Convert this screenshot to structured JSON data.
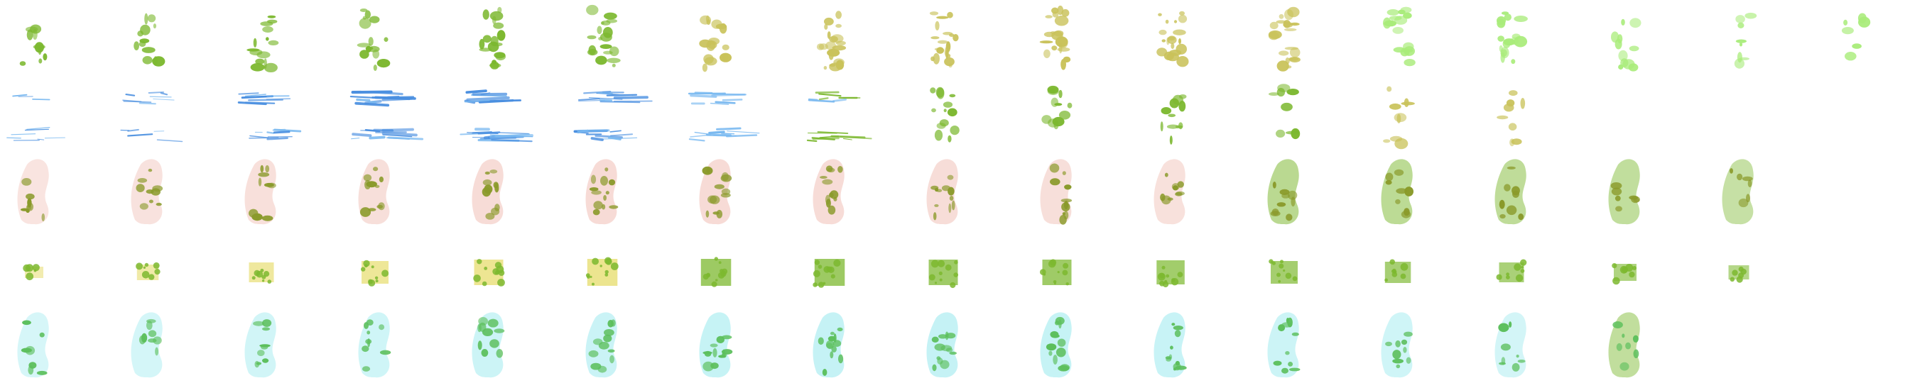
{
  "palette": {
    "background": "#ffffff",
    "green": "#7cb82f",
    "olive": "#c9c25a",
    "olive_dark": "#8a9a2a",
    "light_green": "#a9ec7a",
    "blue": "#4a8fe0",
    "blue_light": "#78b8f0",
    "pink": "#f2c8c0",
    "yellow": "#e6dc6a",
    "cyan": "#a8ecf0",
    "mid_green": "#5cbf5c"
  },
  "sprite_rows": [
    {
      "id": "row-1",
      "theme": "green-to-olive-to-fading",
      "frames": [
        {
          "shape": "blob",
          "color": "green",
          "density": 0.35
        },
        {
          "shape": "blob",
          "color": "green",
          "density": 0.45
        },
        {
          "shape": "blob",
          "color": "green",
          "density": 0.55
        },
        {
          "shape": "blob",
          "color": "green",
          "density": 0.6
        },
        {
          "shape": "blob",
          "color": "green",
          "density": 0.7
        },
        {
          "shape": "blob",
          "color": "green",
          "density": 0.75
        },
        {
          "shape": "blob",
          "color": "olive",
          "density": 0.8
        },
        {
          "shape": "blob",
          "color": "olive",
          "density": 0.85
        },
        {
          "shape": "blob",
          "color": "olive",
          "density": 0.85
        },
        {
          "shape": "blob",
          "color": "olive",
          "density": 0.85
        },
        {
          "shape": "blob",
          "color": "olive",
          "density": 0.85
        },
        {
          "shape": "blob",
          "color": "olive",
          "density": 0.85
        },
        {
          "shape": "blob",
          "color": "light_green",
          "density": 0.7
        },
        {
          "shape": "blob",
          "color": "light_green",
          "density": 0.65
        },
        {
          "shape": "blob",
          "color": "light_green",
          "density": 0.4
        },
        {
          "shape": "blob",
          "color": "light_green",
          "density": 0.2
        },
        {
          "shape": "blob",
          "color": "light_green",
          "density": 0.12
        }
      ]
    },
    {
      "id": "row-2",
      "theme": "blue-streaks-to-green",
      "frames": [
        {
          "shape": "streak",
          "color": "blue",
          "density": 0.2
        },
        {
          "shape": "streak",
          "color": "blue",
          "density": 0.3
        },
        {
          "shape": "streak",
          "color": "blue",
          "density": 0.5
        },
        {
          "shape": "streak",
          "color": "blue",
          "density": 0.8
        },
        {
          "shape": "streak",
          "color": "blue",
          "density": 0.85
        },
        {
          "shape": "streak",
          "color": "blue",
          "density": 0.75
        },
        {
          "shape": "streak",
          "color": "blue_light",
          "density": 0.6
        },
        {
          "shape": "streak",
          "color": "green",
          "density": 0.5
        },
        {
          "shape": "blob",
          "color": "green",
          "density": 0.5
        },
        {
          "shape": "blob",
          "color": "green",
          "density": 0.45
        },
        {
          "shape": "blob",
          "color": "green",
          "density": 0.4
        },
        {
          "shape": "blob",
          "color": "green",
          "density": 0.3
        },
        {
          "shape": "blob",
          "color": "olive",
          "density": 0.25
        },
        {
          "shape": "blob",
          "color": "olive",
          "density": 0.2
        },
        {
          "shape": "blob",
          "color": "olive",
          "density": 0.0
        },
        {
          "shape": "blob",
          "color": "olive",
          "density": 0.0
        },
        {
          "shape": "blob",
          "color": "olive",
          "density": 0.0
        }
      ]
    },
    {
      "id": "row-3",
      "theme": "pink-silhouette-with-olive",
      "frames": [
        {
          "shape": "silhouette",
          "color": "pink",
          "density": 0.35
        },
        {
          "shape": "silhouette",
          "color": "pink",
          "density": 0.45
        },
        {
          "shape": "silhouette",
          "color": "pink",
          "density": 0.55
        },
        {
          "shape": "silhouette",
          "color": "pink",
          "density": 0.6
        },
        {
          "shape": "silhouette",
          "color": "pink",
          "density": 0.7
        },
        {
          "shape": "silhouette",
          "color": "pink",
          "density": 0.75
        },
        {
          "shape": "silhouette",
          "color": "pink",
          "density": 0.75
        },
        {
          "shape": "silhouette",
          "color": "pink",
          "density": 0.7
        },
        {
          "shape": "silhouette",
          "color": "pink",
          "density": 0.65
        },
        {
          "shape": "silhouette",
          "color": "pink",
          "density": 0.6
        },
        {
          "shape": "silhouette",
          "color": "pink",
          "density": 0.5
        },
        {
          "shape": "silhouette",
          "color": "green",
          "density": 0.45
        },
        {
          "shape": "silhouette",
          "color": "green",
          "density": 0.4
        },
        {
          "shape": "silhouette",
          "color": "green",
          "density": 0.35
        },
        {
          "shape": "silhouette",
          "color": "green",
          "density": 0.3
        },
        {
          "shape": "silhouette",
          "color": "green",
          "density": 0.2
        },
        {
          "shape": "silhouette",
          "color": "green",
          "density": 0.0
        }
      ]
    },
    {
      "id": "row-4",
      "theme": "yellow-to-green-sprite",
      "frames": [
        {
          "shape": "slab",
          "color": "yellow",
          "density": 0.2
        },
        {
          "shape": "slab",
          "color": "yellow",
          "density": 0.35
        },
        {
          "shape": "slab",
          "color": "yellow",
          "density": 0.5
        },
        {
          "shape": "slab",
          "color": "yellow",
          "density": 0.6
        },
        {
          "shape": "slab",
          "color": "yellow",
          "density": 0.7
        },
        {
          "shape": "slab",
          "color": "yellow",
          "density": 0.75
        },
        {
          "shape": "slab",
          "color": "green",
          "density": 0.75
        },
        {
          "shape": "slab",
          "color": "green",
          "density": 0.75
        },
        {
          "shape": "slab",
          "color": "green",
          "density": 0.7
        },
        {
          "shape": "slab",
          "color": "green",
          "density": 0.7
        },
        {
          "shape": "slab",
          "color": "green",
          "density": 0.65
        },
        {
          "shape": "slab",
          "color": "green",
          "density": 0.6
        },
        {
          "shape": "slab",
          "color": "green",
          "density": 0.55
        },
        {
          "shape": "slab",
          "color": "green",
          "density": 0.5
        },
        {
          "shape": "slab",
          "color": "green",
          "density": 0.4
        },
        {
          "shape": "slab",
          "color": "green",
          "density": 0.3
        },
        {
          "shape": "slab",
          "color": "green",
          "density": 0.0
        }
      ]
    },
    {
      "id": "row-5",
      "theme": "cyan-silhouette-with-green",
      "frames": [
        {
          "shape": "silhouette",
          "color": "cyan",
          "density": 0.3
        },
        {
          "shape": "silhouette",
          "color": "cyan",
          "density": 0.35
        },
        {
          "shape": "silhouette",
          "color": "cyan",
          "density": 0.45
        },
        {
          "shape": "silhouette",
          "color": "cyan",
          "density": 0.5
        },
        {
          "shape": "silhouette",
          "color": "cyan",
          "density": 0.6
        },
        {
          "shape": "silhouette",
          "color": "cyan",
          "density": 0.65
        },
        {
          "shape": "silhouette",
          "color": "cyan",
          "density": 0.75
        },
        {
          "shape": "silhouette",
          "color": "cyan",
          "density": 0.8
        },
        {
          "shape": "silhouette",
          "color": "cyan",
          "density": 0.8
        },
        {
          "shape": "silhouette",
          "color": "cyan",
          "density": 0.75
        },
        {
          "shape": "silhouette",
          "color": "cyan",
          "density": 0.7
        },
        {
          "shape": "silhouette",
          "color": "cyan",
          "density": 0.6
        },
        {
          "shape": "silhouette",
          "color": "cyan",
          "density": 0.5
        },
        {
          "shape": "silhouette",
          "color": "cyan",
          "density": 0.4
        },
        {
          "shape": "silhouette",
          "color": "green",
          "density": 0.3
        },
        {
          "shape": "silhouette",
          "color": "green",
          "density": 0.0
        },
        {
          "shape": "silhouette",
          "color": "green",
          "density": 0.0
        }
      ]
    }
  ]
}
